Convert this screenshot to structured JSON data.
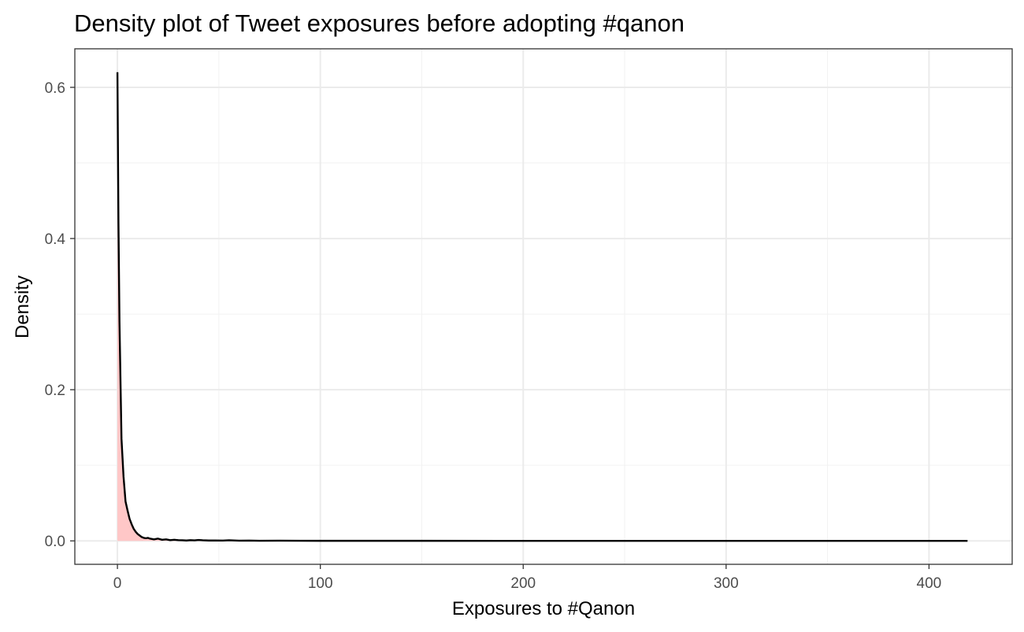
{
  "chart_data": {
    "type": "area",
    "title": "Density plot of Tweet exposures before adopting #qanon",
    "xlabel": "Exposures to #Qanon",
    "ylabel": "Density",
    "xlim": [
      -21,
      441
    ],
    "ylim": [
      -0.031,
      0.651
    ],
    "x_ticks": [
      0,
      100,
      200,
      300,
      400
    ],
    "x_tick_labels": [
      "0",
      "100",
      "200",
      "300",
      "400"
    ],
    "y_ticks": [
      0.0,
      0.2,
      0.4,
      0.6
    ],
    "y_tick_labels": [
      "0.0",
      "0.2",
      "0.4",
      "0.6"
    ],
    "grid": true,
    "legend": "none",
    "colors": {
      "fill": "#ffc7c7",
      "line": "#000000",
      "panel_border": "#333333",
      "grid_major": "#ebebeb",
      "grid_minor": "#f2f2f2"
    },
    "series": [
      {
        "x": [
          0,
          0.5,
          1,
          2,
          3,
          4,
          5,
          6,
          7,
          8,
          9,
          10,
          11,
          12,
          13,
          14,
          15,
          16,
          18,
          20,
          22,
          24,
          26,
          28,
          30,
          32,
          34,
          36,
          38,
          40,
          42,
          45,
          48,
          52,
          55,
          60,
          65,
          70,
          80,
          90,
          100,
          110,
          120,
          150,
          200,
          250,
          300,
          350,
          400,
          419
        ],
        "y": [
          0.62,
          0.42,
          0.29,
          0.135,
          0.085,
          0.052,
          0.04,
          0.029,
          0.022,
          0.016,
          0.012,
          0.009,
          0.007,
          0.005,
          0.004,
          0.0035,
          0.004,
          0.003,
          0.002,
          0.003,
          0.0015,
          0.002,
          0.001,
          0.0015,
          0.001,
          0.0008,
          0.0005,
          0.001,
          0.0007,
          0.0012,
          0.0008,
          0.0005,
          0.0006,
          0.0004,
          0.0008,
          0.0003,
          0.0004,
          0.0002,
          0.0003,
          0.0002,
          0.0001,
          0.0001,
          0.0001,
          0.0001,
          5e-05,
          3e-05,
          2e-05,
          1e-05,
          1e-05,
          1e-05
        ]
      }
    ]
  }
}
